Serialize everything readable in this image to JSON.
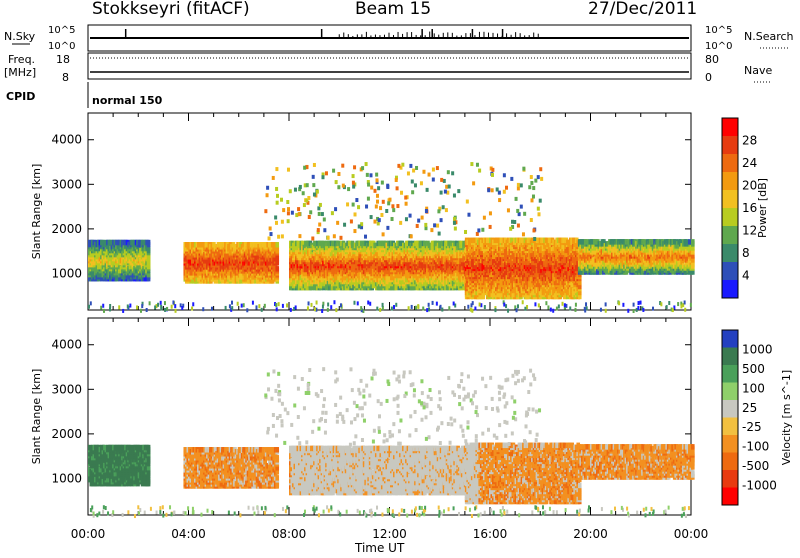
{
  "header": {
    "station": "Stokkseyri (fitACF)",
    "beam": "Beam 15",
    "date": "27/Dec/2011"
  },
  "summary": {
    "nsky_label": "N.Sky",
    "nsearch_label": "N.Search",
    "noise_top": "10^5",
    "noise_bottom": "10^0",
    "freq_label": "Freq.",
    "freq_unit": "[MHz]",
    "freq_ticks": [
      "18",
      "8"
    ],
    "nave_label": "Nave",
    "nave_ticks": [
      "80",
      "0"
    ],
    "cpid_label": "CPID",
    "cpid_value": "normal 150"
  },
  "chart_data": [
    {
      "type": "heatmap",
      "name_printed": "Power",
      "colorbar_label": "Power [dB]",
      "colorbar_ticks": [
        4,
        8,
        12,
        16,
        20,
        24,
        28
      ],
      "colorbar_colors": [
        "#1a1aff",
        "#2e4fb8",
        "#3a8a6a",
        "#5fa84e",
        "#b8cc20",
        "#f2c020",
        "#f39a10",
        "#ee6a10",
        "#e63b10",
        "#ff0000"
      ],
      "ylabel": "Slant Range [km]",
      "yticks": [
        1000,
        2000,
        3000,
        4000
      ],
      "ylim": [
        180,
        4600
      ],
      "xticks": [
        "00:00",
        "04:00",
        "08:00",
        "12:00",
        "16:00",
        "20:00",
        "00:00"
      ],
      "xlim_hours": [
        0,
        24
      ],
      "echo_bands": [
        {
          "t0": 0.0,
          "t1": 2.4,
          "r0": 900,
          "r1": 1750,
          "level": "low-mid"
        },
        {
          "t0": 3.8,
          "t1": 7.5,
          "r0": 850,
          "r1": 1700,
          "level": "high"
        },
        {
          "t0": 8.0,
          "t1": 15.0,
          "r0": 700,
          "r1": 1700,
          "level": "mid-high"
        },
        {
          "t0": 15.0,
          "t1": 19.5,
          "r0": 500,
          "r1": 1800,
          "level": "high"
        },
        {
          "t0": 19.5,
          "t1": 24.0,
          "r0": 1050,
          "r1": 1750,
          "level": "mid"
        }
      ]
    },
    {
      "type": "heatmap",
      "name_printed": "Velocity",
      "colorbar_label": "Velocity [m s^-1]",
      "colorbar_ticks": [
        1000,
        500,
        100,
        25,
        -25,
        -100,
        -500,
        -1000
      ],
      "colorbar_colors": [
        "#2340c0",
        "#3a7a50",
        "#4aa05a",
        "#8fd06a",
        "#c8c8c0",
        "#f2c040",
        "#f39020",
        "#ee6a10",
        "#e83a10",
        "#ff0000"
      ],
      "ylabel": "Slant Range [km]",
      "yticks": [
        1000,
        2000,
        3000,
        4000
      ],
      "ylim": [
        180,
        4600
      ],
      "xlabel": "Time UT",
      "xticks": [
        "00:00",
        "04:00",
        "08:00",
        "12:00",
        "16:00",
        "20:00",
        "00:00"
      ],
      "xlim_hours": [
        0,
        24
      ]
    }
  ]
}
